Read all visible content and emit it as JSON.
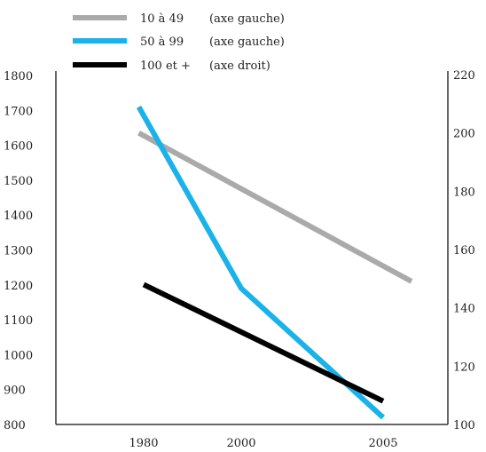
{
  "chart_data": {
    "type": "line",
    "categories": [
      "1980",
      "2000",
      "2005"
    ],
    "left_axis": {
      "ticks": [
        "1800",
        "1700",
        "1600",
        "1500",
        "1400",
        "1300",
        "1200",
        "1100",
        "1000",
        "900",
        "800"
      ],
      "ylim": [
        800,
        1800
      ]
    },
    "right_axis": {
      "ticks": [
        "220",
        "200",
        "180",
        "160",
        "140",
        "120",
        "100"
      ],
      "ylim": [
        100,
        220
      ]
    },
    "series": [
      {
        "name": "10 à 49",
        "axis_note": "(axe gauche)",
        "axis": "left",
        "color": "#aaaaaa",
        "points": [
          {
            "x": 1979,
            "y": 1635
          },
          {
            "x": 2006,
            "y": 1210
          }
        ]
      },
      {
        "name": "50 à 99",
        "axis_note": "(axe gauche)",
        "axis": "left",
        "color": "#1ab2e8",
        "points": [
          {
            "x": 1979,
            "y": 1710
          },
          {
            "x": 2000,
            "y": 1190
          },
          {
            "x": 2005,
            "y": 820
          }
        ]
      },
      {
        "name": "100 et +",
        "axis_note": "(axe droit)",
        "axis": "right",
        "color": "#000000",
        "points": [
          {
            "x": 1980,
            "y": 148
          },
          {
            "x": 2005,
            "y": 108
          }
        ]
      }
    ],
    "grid": false,
    "legend_position": "top-left"
  }
}
